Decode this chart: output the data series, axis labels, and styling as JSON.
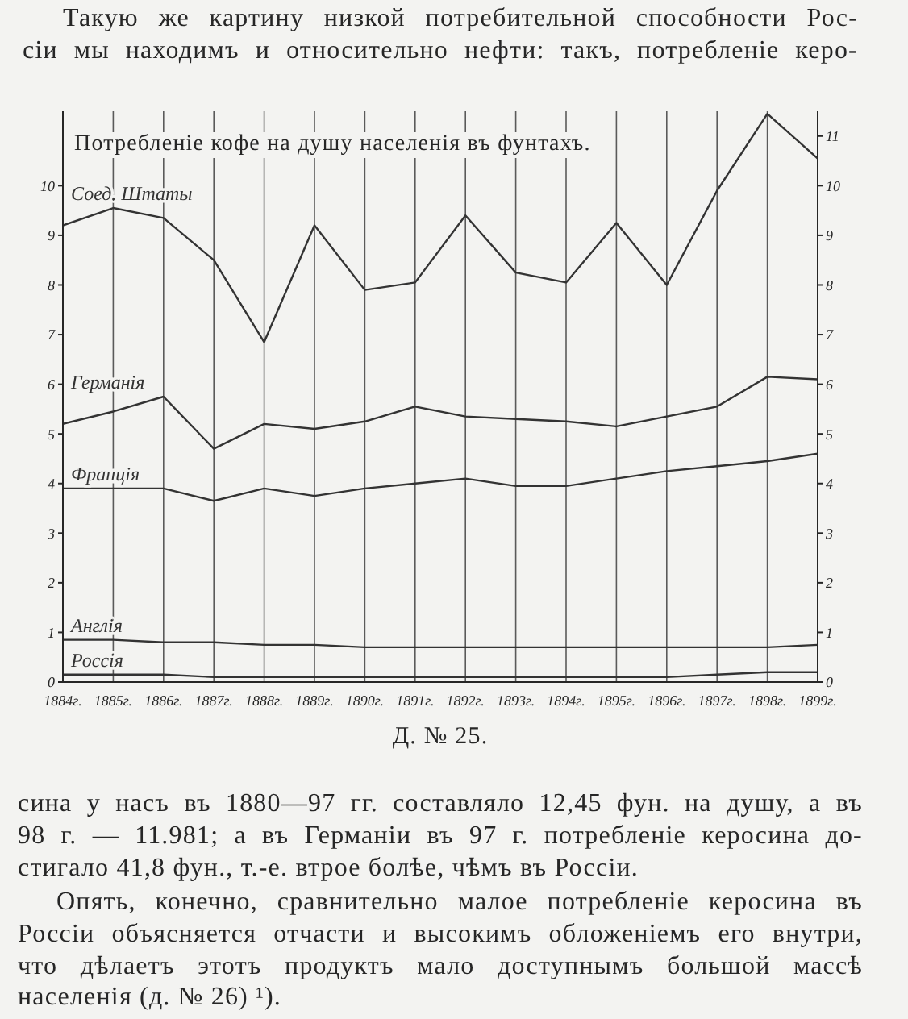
{
  "chart_data": {
    "type": "line",
    "title": "Потребленіе кофе на душу населенія въ фунтахъ.",
    "annotations": [
      "Такую же картину низкой потребительной способности Рос-",
      "сіи мы находимъ и относительно нефти: такъ, потребленіе керо-",
      "Д. № 25.",
      "сина у насъ въ 1880—97 гг. составляло 12,45 фун. на душу, а въ",
      "98 г. — 11.981; а въ Германіи въ 97 г. потребленіе керосина до-",
      "стигало 41,8 фун., т.-е. втрое болѣе, чѣмъ въ Россіи.",
      "Опять, конечно, сравнительно малое потребленіе керосина въ",
      "Россіи объясняется отчасти и высокимъ обложеніемъ его внутри,",
      "что дѣлаетъ этотъ продуктъ мало доступнымъ большой массѣ",
      "населенія (д. № 26) ¹)."
    ],
    "categories": [
      "1884г.",
      "1885г.",
      "1886г.",
      "1887г.",
      "1888г.",
      "1889г.",
      "1890г.",
      "1891г.",
      "1892г.",
      "1893г.",
      "1894г.",
      "1895г.",
      "1896г.",
      "1897г.",
      "1898г.",
      "1899г."
    ],
    "series": [
      {
        "name": "Соед. Штаты",
        "color": "#333333",
        "values": [
          9.2,
          9.55,
          9.35,
          8.5,
          6.85,
          9.2,
          7.9,
          8.05,
          9.4,
          8.25,
          8.05,
          9.25,
          8.0,
          9.9,
          11.45,
          10.55
        ]
      },
      {
        "name": "Германія",
        "color": "#333333",
        "values": [
          5.2,
          5.45,
          5.75,
          4.7,
          5.2,
          5.1,
          5.25,
          5.55,
          5.35,
          5.3,
          5.25,
          5.15,
          5.35,
          5.55,
          6.15,
          6.1
        ]
      },
      {
        "name": "Франція",
        "color": "#333333",
        "values": [
          3.9,
          3.9,
          3.9,
          3.65,
          3.9,
          3.75,
          3.9,
          4.0,
          4.1,
          3.95,
          3.95,
          4.1,
          4.25,
          4.35,
          4.45,
          4.6
        ]
      },
      {
        "name": "Англія",
        "color": "#333333",
        "values": [
          0.85,
          0.85,
          0.8,
          0.8,
          0.75,
          0.75,
          0.7,
          0.7,
          0.7,
          0.7,
          0.7,
          0.7,
          0.7,
          0.7,
          0.7,
          0.75
        ]
      },
      {
        "name": "Россія",
        "color": "#333333",
        "values": [
          0.15,
          0.15,
          0.15,
          0.1,
          0.1,
          0.1,
          0.1,
          0.1,
          0.1,
          0.1,
          0.1,
          0.1,
          0.1,
          0.15,
          0.2,
          0.2
        ]
      }
    ],
    "ylim": [
      0,
      11.5
    ],
    "yticks": [
      0,
      1,
      2,
      3,
      4,
      5,
      6,
      7,
      8,
      9,
      10
    ],
    "y2lim": [
      0,
      11.5
    ],
    "y2ticks": [
      0,
      1,
      2,
      3,
      4,
      5,
      6,
      7,
      8,
      9,
      10,
      11
    ],
    "grid": "x"
  }
}
